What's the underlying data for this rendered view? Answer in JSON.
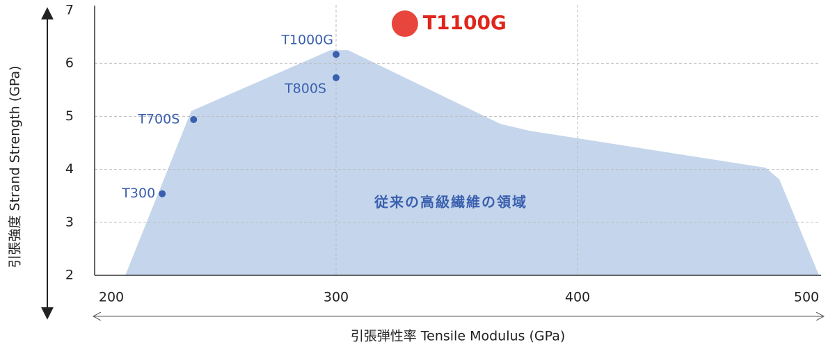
{
  "chart_data": {
    "type": "scatter",
    "x_label": "引張弾性率 Tensile Modulus (GPa)",
    "y_label": "引張強度 Strand Strength (GPa)",
    "region_label": "従来の高級繊維の領域",
    "region": {
      "x": [
        212.7,
        240,
        297.7,
        305,
        368,
        380,
        478,
        483.6,
        500
      ],
      "y": [
        2,
        5.1,
        6.25,
        6.25,
        4.86,
        4.73,
        4.03,
        3.81,
        2
      ]
    },
    "region_color": "#c5d6ec",
    "labels": [
      "T300",
      "T700S",
      "T1000G",
      "T800S",
      "T1100G"
    ],
    "x": [
      228,
      241,
      300,
      300,
      328.5
    ],
    "y": [
      3.54,
      4.94,
      6.17,
      5.73,
      6.75
    ],
    "colors": [
      "#3a5fae",
      "#3a5fae",
      "#3a5fae",
      "#3a5fae",
      "#e8463c"
    ],
    "xlim": [
      200,
      500
    ],
    "ylim": [
      2,
      7
    ],
    "xticks": [
      200,
      300,
      400,
      500
    ],
    "yticks": [
      2,
      3,
      4,
      5,
      6,
      7
    ],
    "grid": true
  }
}
